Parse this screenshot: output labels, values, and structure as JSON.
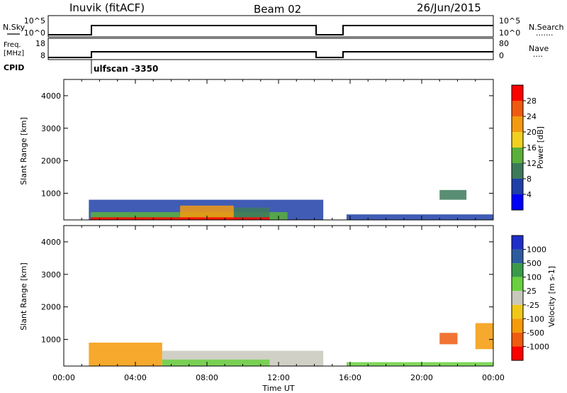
{
  "header": {
    "site": "Inuvik (fitACF)",
    "beam": "Beam 02",
    "date": "26/Jun/2015"
  },
  "strip_top": {
    "left_label": "N.Sky",
    "left_ticks": [
      "10^5",
      "10^0"
    ],
    "right_ticks": [
      "10^5",
      "10^0"
    ],
    "right_label": "N.Search",
    "right_line": "......."
  },
  "strip_mid": {
    "left_label_1": "Freq.",
    "left_label_2": "[MHz]",
    "left_ticks": [
      "18",
      "8"
    ],
    "right_ticks": [
      "80",
      "0"
    ],
    "right_label": "Nave",
    "right_line": "...."
  },
  "cpid": {
    "label": "CPID",
    "mode_label": "ulfscan -3350"
  },
  "colors": {
    "power": [
      "#0000ff",
      "#1f3fa8",
      "#3d7a5a",
      "#5ab03a",
      "#f0d020",
      "#f39a10",
      "#f05a10",
      "#ff0000"
    ],
    "velocity": [
      "#ff0000",
      "#ee5c10",
      "#f59a08",
      "#f0c818",
      "#c8c8bc",
      "#6ad040",
      "#3a9a4a",
      "#2e5ca0",
      "#1e2ec8"
    ]
  },
  "chart_data": [
    {
      "type": "heatmap",
      "title": "",
      "xlabel": "Time UT",
      "ylabel": "Slant Range [km]",
      "x_ticks": [
        "00:00",
        "04:00",
        "08:00",
        "12:00",
        "16:00",
        "20:00",
        "00:00"
      ],
      "x_range_hours": [
        0,
        24
      ],
      "y_ticks": [
        "1000",
        "2000",
        "3000",
        "4000"
      ],
      "ylim": [
        180,
        4500
      ],
      "colorbar": {
        "label": "Power [dB]",
        "ticks": [
          "4",
          "8",
          "12",
          "16",
          "20",
          "24",
          "28"
        ],
        "range": [
          0,
          32
        ]
      },
      "regions": [
        {
          "t": [
            1.4,
            14.5
          ],
          "r": [
            180,
            800
          ],
          "level": 1
        },
        {
          "t": [
            1.5,
            12.5
          ],
          "r": [
            180,
            420
          ],
          "level": 3
        },
        {
          "t": [
            6.5,
            9.5
          ],
          "r": [
            180,
            620
          ],
          "level": 5
        },
        {
          "t": [
            9.5,
            11.5
          ],
          "r": [
            180,
            560
          ],
          "level": 2
        },
        {
          "t": [
            1.5,
            11.5
          ],
          "r": [
            180,
            260
          ],
          "level": 7
        },
        {
          "t": [
            15.8,
            24.0
          ],
          "r": [
            180,
            350
          ],
          "level": 1
        },
        {
          "t": [
            21.0,
            22.5
          ],
          "r": [
            800,
            1100
          ],
          "level": 2
        }
      ],
      "gap_hours": [
        14.2,
        15.8
      ]
    },
    {
      "type": "heatmap",
      "title": "",
      "xlabel": "Time UT",
      "ylabel": "Slant Range [km]",
      "x_ticks": [
        "00:00",
        "04:00",
        "08:00",
        "12:00",
        "16:00",
        "20:00",
        "00:00"
      ],
      "x_range_hours": [
        0,
        24
      ],
      "y_ticks": [
        "1000",
        "2000",
        "3000",
        "4000"
      ],
      "ylim": [
        180,
        4500
      ],
      "colorbar": {
        "label": "Velocity [m s-1]",
        "ticks": [
          "1000",
          "500",
          "100",
          "25",
          "-25",
          "-100",
          "-500",
          "-1000"
        ]
      },
      "regions": [
        {
          "t": [
            1.4,
            5.5
          ],
          "r": [
            180,
            900
          ],
          "level": 2
        },
        {
          "t": [
            5.5,
            14.5
          ],
          "r": [
            180,
            650
          ],
          "level": 4
        },
        {
          "t": [
            5.5,
            11.5
          ],
          "r": [
            180,
            380
          ],
          "level": 5
        },
        {
          "t": [
            15.8,
            24.0
          ],
          "r": [
            180,
            300
          ],
          "level": 5
        },
        {
          "t": [
            21.0,
            22.0
          ],
          "r": [
            850,
            1200
          ],
          "level": 1
        },
        {
          "t": [
            23.0,
            24.0
          ],
          "r": [
            700,
            1500
          ],
          "level": 2
        }
      ],
      "gap_hours": [
        14.2,
        15.8
      ]
    }
  ]
}
